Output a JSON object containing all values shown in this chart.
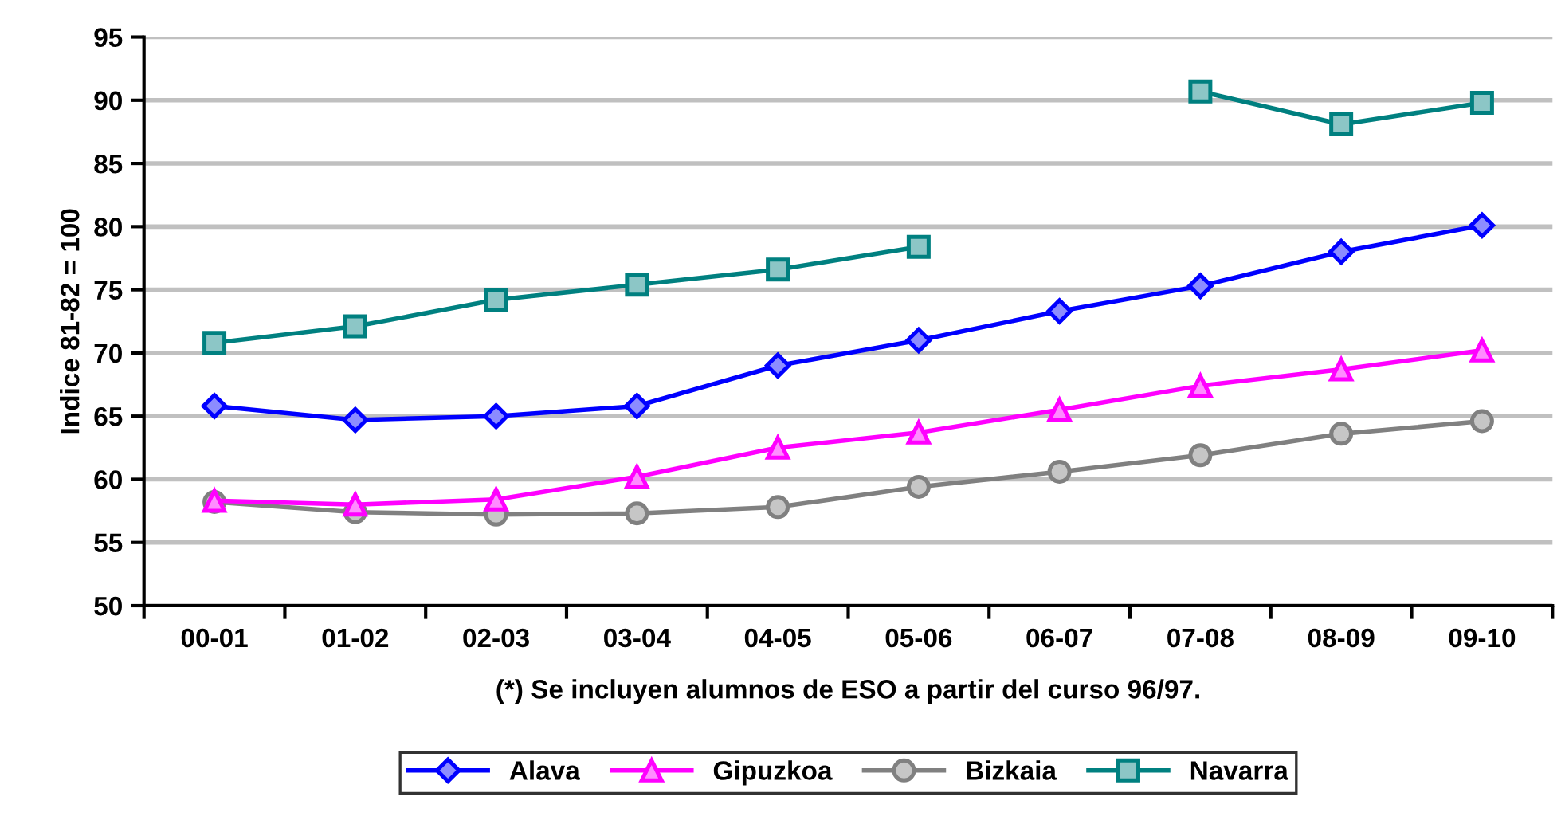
{
  "chart_data": {
    "type": "line",
    "ylabel": "Indice 81-82 = 100",
    "xlabel": "(*) Se incluyen alumnos de ESO a partir del curso 96/97.",
    "categories": [
      "00-01",
      "01-02",
      "02-03",
      "03-04",
      "04-05",
      "05-06",
      "06-07",
      "07-08",
      "08-09",
      "09-10"
    ],
    "series": [
      {
        "name": "Alava",
        "color": "#0000ff",
        "marker": "diamond",
        "values": [
          65.8,
          64.7,
          65.0,
          65.8,
          69.0,
          71.0,
          73.3,
          75.3,
          78.0,
          80.1
        ]
      },
      {
        "name": "Gipuzkoa",
        "color": "#ff00ff",
        "marker": "triangle",
        "values": [
          58.3,
          58.0,
          58.4,
          60.2,
          62.5,
          63.7,
          65.5,
          67.4,
          68.7,
          70.2
        ]
      },
      {
        "name": "Bizkaia",
        "color": "#808080",
        "marker": "circle",
        "values": [
          58.2,
          57.4,
          57.2,
          57.3,
          57.8,
          59.4,
          60.6,
          61.9,
          63.6,
          64.6
        ]
      },
      {
        "name": "Navarra",
        "color": "#008080",
        "marker": "square",
        "values": [
          70.8,
          72.1,
          74.2,
          75.4,
          76.6,
          78.4,
          null,
          90.7,
          88.1,
          89.8
        ]
      }
    ],
    "ylim": [
      50,
      95
    ],
    "yticks": [
      50,
      55,
      60,
      65,
      70,
      75,
      80,
      85,
      90,
      95
    ],
    "grid": "y",
    "legend": "bottom",
    "line_style": "solid"
  }
}
